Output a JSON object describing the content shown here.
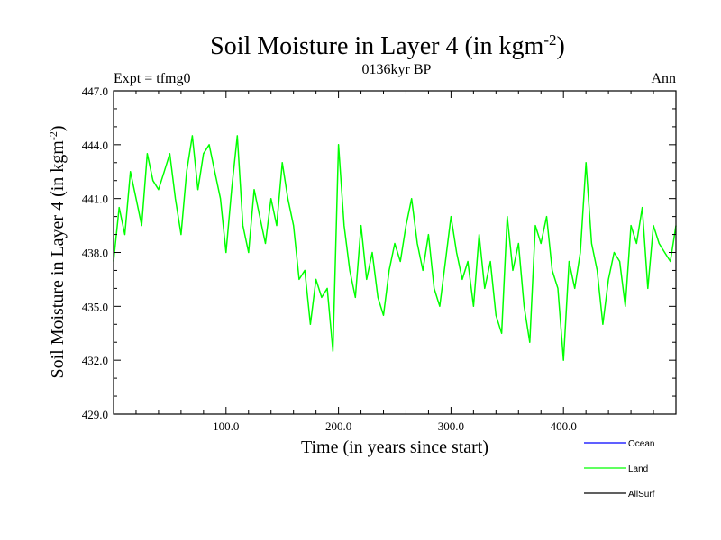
{
  "chart_data": {
    "type": "line",
    "title": "Soil Moisture in Layer 4 (in kgm",
    "title_superscript": "-2",
    "title_close": ")",
    "subtitle_left": "Expt = tfmg0",
    "subtitle_center": "0136kyr BP",
    "subtitle_right": "Ann",
    "xlabel": "Time (in years since start)",
    "ylabel": "Soil Moisture in Layer 4 (in kgm",
    "ylabel_superscript": "-2",
    "ylabel_close": ")",
    "xlim": [
      0,
      500
    ],
    "ylim": [
      429,
      447
    ],
    "xticks": [
      100,
      200,
      300,
      400
    ],
    "xtick_labels": [
      "100.0",
      "200.0",
      "300.0",
      "400.0"
    ],
    "yticks": [
      429,
      432,
      435,
      438,
      441,
      444,
      447
    ],
    "ytick_labels": [
      "429.0",
      "432.0",
      "435.0",
      "438.0",
      "441.0",
      "444.0",
      "447.0"
    ],
    "legend_position": "bottom-right",
    "series": [
      {
        "name": "Ocean",
        "color": "#0000ff",
        "x": [],
        "values": []
      },
      {
        "name": "Land",
        "color": "#00ff00",
        "x": [
          0,
          5,
          10,
          15,
          20,
          25,
          30,
          35,
          40,
          45,
          50,
          55,
          60,
          65,
          70,
          75,
          80,
          85,
          90,
          95,
          100,
          105,
          110,
          115,
          120,
          125,
          130,
          135,
          140,
          145,
          150,
          155,
          160,
          165,
          170,
          175,
          180,
          185,
          190,
          195,
          200,
          205,
          210,
          215,
          220,
          225,
          230,
          235,
          240,
          245,
          250,
          255,
          260,
          265,
          270,
          275,
          280,
          285,
          290,
          295,
          300,
          305,
          310,
          315,
          320,
          325,
          330,
          335,
          340,
          345,
          350,
          355,
          360,
          365,
          370,
          375,
          380,
          385,
          390,
          395,
          400,
          405,
          410,
          415,
          420,
          425,
          430,
          435,
          440,
          445,
          450,
          455,
          460,
          465,
          470,
          475,
          480,
          485,
          490,
          495,
          500
        ],
        "values": [
          437.5,
          440.5,
          439.0,
          442.5,
          441.0,
          439.5,
          443.5,
          442.0,
          441.5,
          442.5,
          443.5,
          441.0,
          439.0,
          442.5,
          444.5,
          441.5,
          443.5,
          444.0,
          442.5,
          441.0,
          438.0,
          441.5,
          444.5,
          439.5,
          438.0,
          441.5,
          440.0,
          438.5,
          441.0,
          439.5,
          443.0,
          441.0,
          439.5,
          436.5,
          437.0,
          434.0,
          436.5,
          435.5,
          436.0,
          432.5,
          444.0,
          439.5,
          437.0,
          435.5,
          439.5,
          436.5,
          438.0,
          435.5,
          434.5,
          437.0,
          438.5,
          437.5,
          439.5,
          441.0,
          438.5,
          437.0,
          439.0,
          436.0,
          435.0,
          437.5,
          440.0,
          438.0,
          436.5,
          437.5,
          435.0,
          439.0,
          436.0,
          437.5,
          434.5,
          433.5,
          440.0,
          437.0,
          438.5,
          435.0,
          433.0,
          439.5,
          438.5,
          440.0,
          437.0,
          436.0,
          432.0,
          437.5,
          436.0,
          438.0,
          443.0,
          438.5,
          437.0,
          434.0,
          436.5,
          438.0,
          437.5,
          435.0,
          439.5,
          438.5,
          440.5,
          436.0,
          439.5,
          438.5,
          438.0,
          437.5,
          439.5
        ]
      },
      {
        "name": "AllSurf",
        "color": "#000000",
        "x": [],
        "values": []
      }
    ]
  }
}
